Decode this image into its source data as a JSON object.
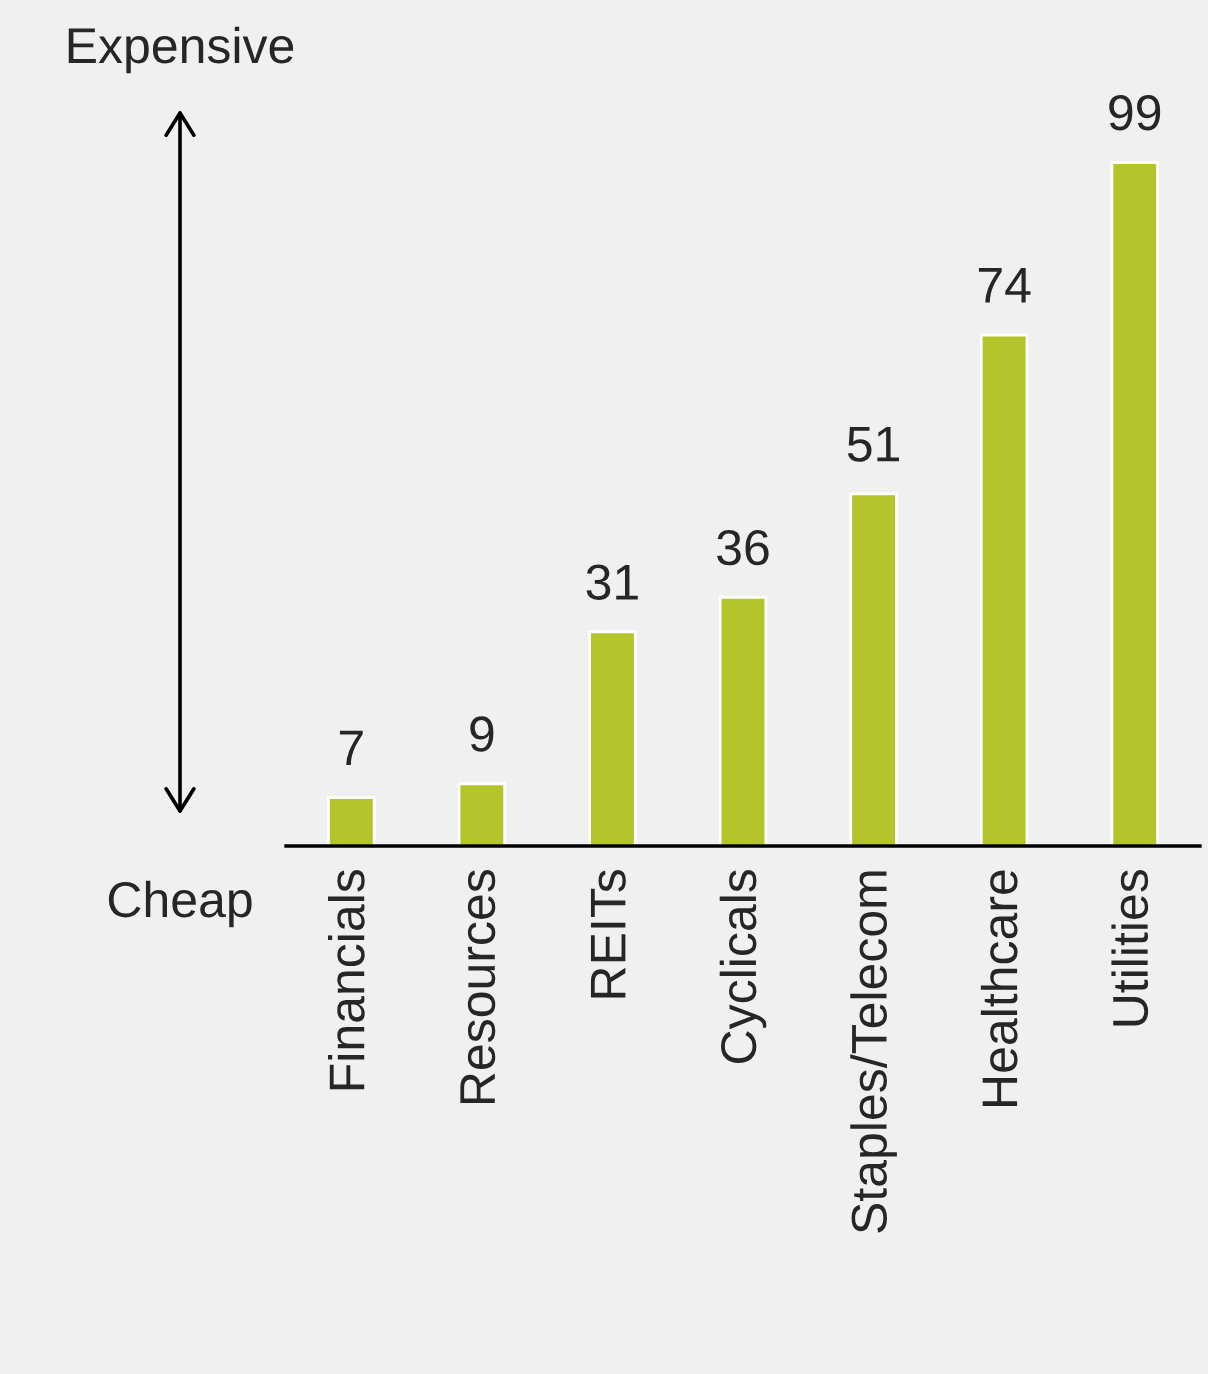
{
  "chart_data": {
    "type": "bar",
    "categories": [
      "Financials",
      "Resources",
      "REITs",
      "Cyclicals",
      "Staples/Telecom",
      "Healthcare",
      "Utilities"
    ],
    "values": [
      7,
      9,
      31,
      36,
      51,
      74,
      99
    ],
    "color": "#b3c52a",
    "data_labels": true,
    "grid": false,
    "annotations": [
      "Expensive",
      "Cheap"
    ]
  }
}
